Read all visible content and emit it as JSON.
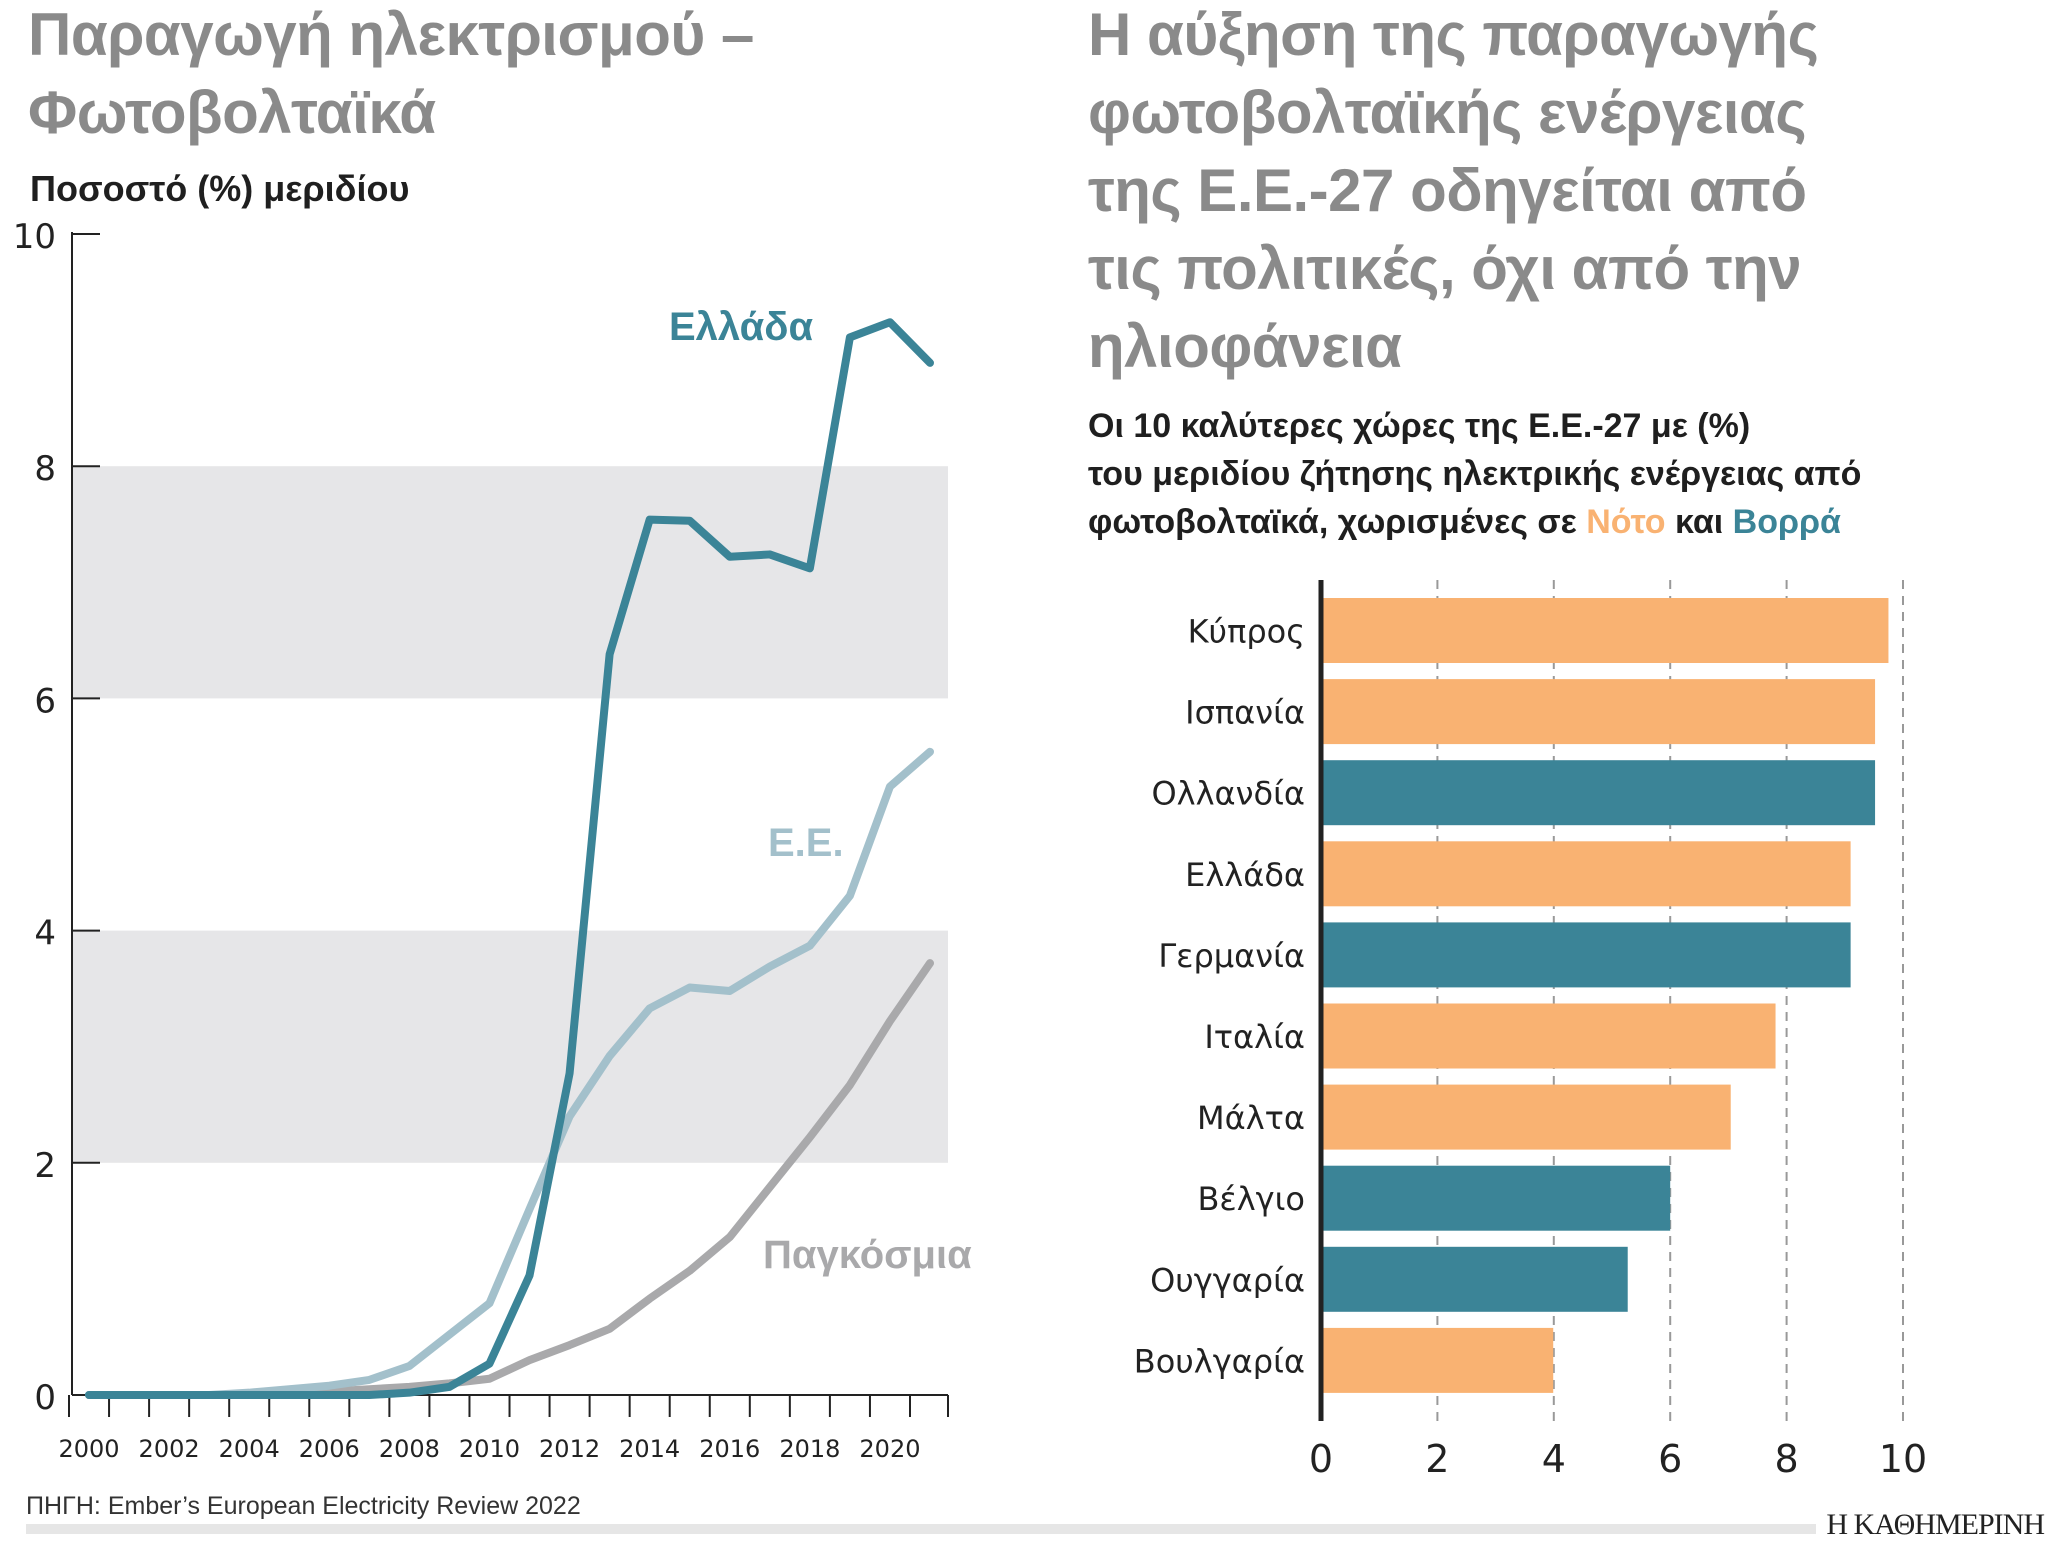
{
  "left": {
    "title_lines": [
      "Παραγωγή ηλεκτρισμού –",
      "Φωτοβολταϊκά"
    ],
    "subtitle": "Ποσοστό (%) μεριδίου"
  },
  "right": {
    "title_lines": [
      "Η αύξηση της παραγωγής",
      "φωτοβολταϊκής ενέργειας",
      "της Ε.Ε.-27 οδηγείται από",
      "τις πολιτικές, όχι από την",
      "ηλιοφάνεια"
    ],
    "subtitle_line1": "Οι 10 καλύτερες χώρες της Ε.Ε.-27 με (%)",
    "subtitle_line2": "του μεριδίου ζήτησης ηλεκτρικής ενέργειας από",
    "subtitle_line3_pre": "φωτοβολταϊκά, χωρισμένες σε ",
    "subtitle_south": "Νότο",
    "subtitle_and": " και ",
    "subtitle_north": "Βορρά"
  },
  "source": "ΠΗΓΗ: Ember’s European Electricity Review 2022",
  "logo": "Η ΚΑΘΗΜΕΡΙΝΗ",
  "chart_data": [
    {
      "type": "line",
      "title": "Παραγωγή ηλεκτρισμού – Φωτοβολταϊκά",
      "ylabel": "Ποσοστό (%) μεριδίου",
      "xlim": [
        2000,
        2021
      ],
      "ylim": [
        0,
        10
      ],
      "x_tick_labels": [
        "2000",
        "2002",
        "2004",
        "2006",
        "2008",
        "2010",
        "2012",
        "2014",
        "2016",
        "2018",
        "2020"
      ],
      "y_tick_labels": [
        "0",
        "2",
        "4",
        "6",
        "8",
        "10"
      ],
      "shaded_bands": [
        [
          2,
          4
        ],
        [
          6,
          8
        ]
      ],
      "x": [
        2000,
        2001,
        2002,
        2003,
        2004,
        2005,
        2006,
        2007,
        2008,
        2009,
        2010,
        2011,
        2012,
        2013,
        2014,
        2015,
        2016,
        2017,
        2018,
        2019,
        2020,
        2021
      ],
      "series": [
        {
          "name": "Ελλάδα",
          "color": "#3b8497",
          "values": [
            0,
            0,
            0,
            0,
            0,
            0,
            0,
            0,
            0.02,
            0.07,
            0.27,
            1.03,
            2.77,
            6.38,
            7.54,
            7.53,
            7.22,
            7.24,
            7.12,
            9.11,
            9.24,
            8.89
          ]
        },
        {
          "name": "Ε.Ε.",
          "color": "#a3c0cb",
          "values": [
            0,
            0,
            0,
            0,
            0.02,
            0.05,
            0.08,
            0.13,
            0.25,
            0.52,
            0.79,
            1.6,
            2.4,
            2.92,
            3.33,
            3.51,
            3.48,
            3.69,
            3.87,
            4.3,
            5.24,
            5.54
          ]
        },
        {
          "name": "Παγκόσμια",
          "color": "#a9a9ab",
          "values": [
            0,
            0,
            0,
            0,
            0,
            0.01,
            0.03,
            0.05,
            0.07,
            0.1,
            0.14,
            0.3,
            0.43,
            0.57,
            0.83,
            1.07,
            1.36,
            1.79,
            2.22,
            2.67,
            3.22,
            3.72
          ]
        }
      ]
    },
    {
      "type": "bar",
      "orientation": "horizontal",
      "xlim": [
        0,
        10
      ],
      "x_tick_labels": [
        "0",
        "2",
        "4",
        "6",
        "8",
        "10"
      ],
      "grid": "dashed vertical",
      "categories": [
        "Κύπρος",
        "Ισπανία",
        "Ολλανδία",
        "Ελλάδα",
        "Γερμανία",
        "Ιταλία",
        "Μάλτα",
        "Βέλγιο",
        "Ουγγαρία",
        "Βουλγαρία"
      ],
      "values": [
        9.75,
        9.52,
        9.52,
        9.1,
        9.1,
        7.81,
        7.04,
        6.0,
        5.27,
        3.99
      ],
      "groups": [
        "south",
        "south",
        "north",
        "south",
        "north",
        "south",
        "south",
        "north",
        "north",
        "south"
      ],
      "group_colors": {
        "south": "#f9b272",
        "north": "#3b8497"
      }
    }
  ]
}
